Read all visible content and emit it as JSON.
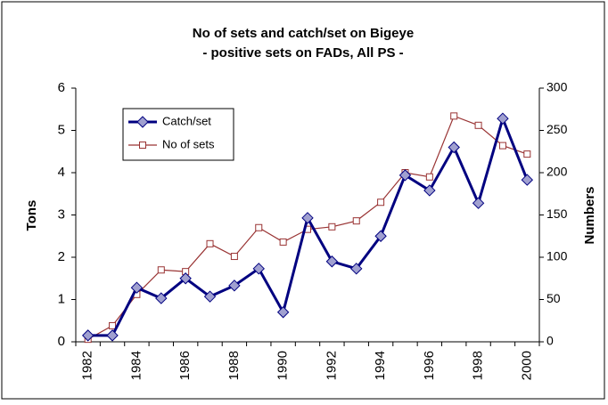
{
  "chart_data": {
    "type": "line",
    "title": "No of sets and catch/set on Bigeye",
    "subtitle": "- positive sets on FADs, All PS -",
    "ylabel": "Tons",
    "y2label": "Numbers",
    "categories": [
      "1982",
      null,
      "1984",
      null,
      "1986",
      null,
      "1988",
      null,
      "1990",
      null,
      "1992",
      null,
      "1994",
      null,
      "1996",
      null,
      "1998",
      null,
      "2000"
    ],
    "ylim": [
      0,
      6
    ],
    "yticks": [
      0,
      1,
      2,
      3,
      4,
      5,
      6
    ],
    "y2lim": [
      0,
      300
    ],
    "y2ticks": [
      0,
      50,
      100,
      150,
      200,
      250,
      300
    ],
    "legend": "upper left",
    "series": [
      {
        "name": "Catch/set",
        "color": "#000080",
        "marker": "diamond",
        "values": [
          0.15,
          0.15,
          1.28,
          1.03,
          1.5,
          1.07,
          1.33,
          1.73,
          0.7,
          2.93,
          1.9,
          1.73,
          2.5,
          3.94,
          3.58,
          4.6,
          3.28,
          5.28,
          3.83
        ]
      },
      {
        "name": "No of sets",
        "color": "#993333",
        "marker": "square",
        "axis": "y2",
        "values": [
          3,
          19,
          56,
          85,
          83,
          116,
          101,
          135,
          118,
          133,
          136,
          143,
          165,
          200,
          195,
          267,
          256,
          232,
          222
        ]
      }
    ]
  }
}
